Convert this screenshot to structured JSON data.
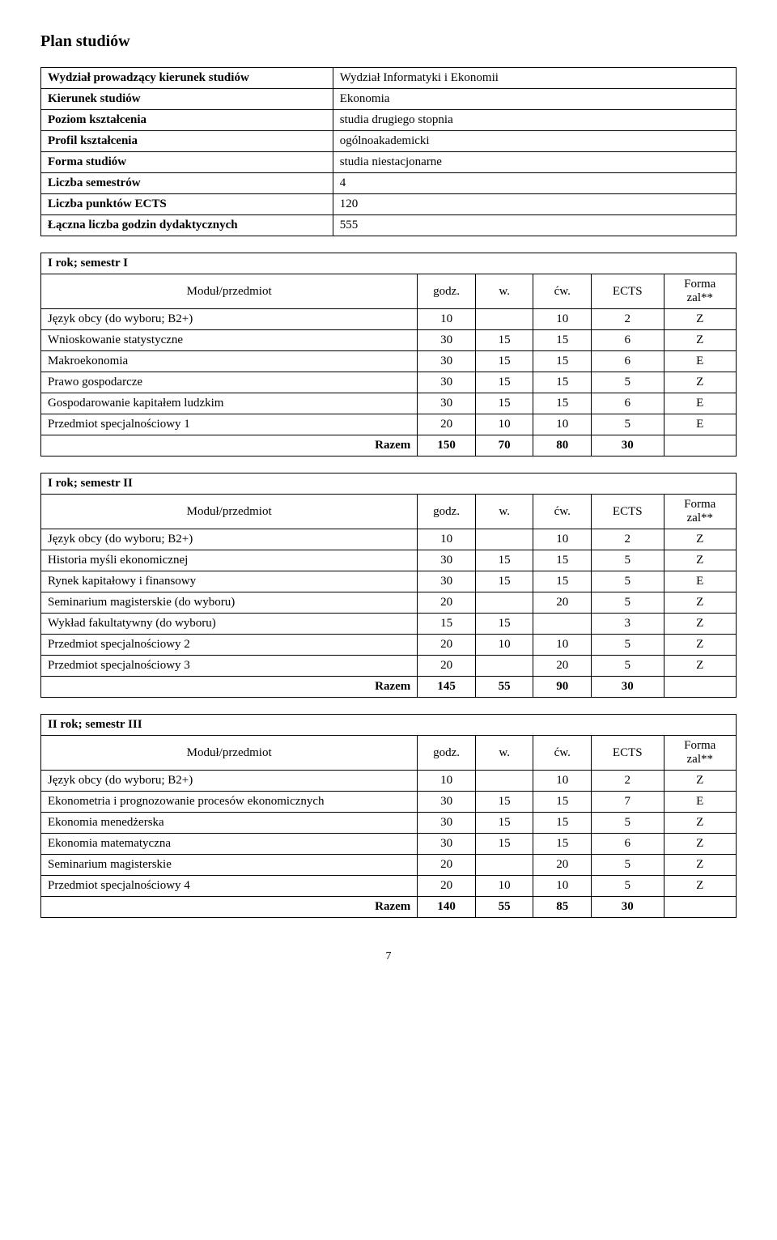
{
  "title": "Plan studiów",
  "info": {
    "rows": [
      {
        "label": "Wydział prowadzący kierunek studiów",
        "value": "Wydział Informatyki i Ekonomii"
      },
      {
        "label": "Kierunek studiów",
        "value": "Ekonomia"
      },
      {
        "label": "Poziom kształcenia",
        "value": "studia drugiego stopnia"
      },
      {
        "label": "Profil kształcenia",
        "value": "ogólnoakademicki"
      },
      {
        "label": "Forma studiów",
        "value": "studia niestacjonarne"
      },
      {
        "label": "Liczba semestrów",
        "value": "4"
      },
      {
        "label": "Liczba punktów ECTS",
        "value": "120"
      },
      {
        "label": "Łączna liczba godzin dydaktycznych",
        "value": "555"
      }
    ]
  },
  "headers": {
    "module": "Moduł/przedmiot",
    "godz": "godz.",
    "w": "w.",
    "cw": "ćw.",
    "ects": "ECTS",
    "forma": "Forma zal**",
    "razem": "Razem"
  },
  "sem1": {
    "title": "I rok; semestr I",
    "rows": [
      {
        "name": "Język obcy (do wyboru; B2+)",
        "godz": "10",
        "w": "",
        "cw": "10",
        "ects": "2",
        "forma": "Z"
      },
      {
        "name": "Wnioskowanie statystyczne",
        "godz": "30",
        "w": "15",
        "cw": "15",
        "ects": "6",
        "forma": "Z"
      },
      {
        "name": "Makroekonomia",
        "godz": "30",
        "w": "15",
        "cw": "15",
        "ects": "6",
        "forma": "E"
      },
      {
        "name": "Prawo gospodarcze",
        "godz": "30",
        "w": "15",
        "cw": "15",
        "ects": "5",
        "forma": "Z"
      },
      {
        "name": "Gospodarowanie kapitałem ludzkim",
        "godz": "30",
        "w": "15",
        "cw": "15",
        "ects": "6",
        "forma": "E"
      },
      {
        "name": "Przedmiot specjalnościowy 1",
        "godz": "20",
        "w": "10",
        "cw": "10",
        "ects": "5",
        "forma": "E"
      }
    ],
    "sum": {
      "godz": "150",
      "w": "70",
      "cw": "80",
      "ects": "30"
    }
  },
  "sem2": {
    "title": "I rok; semestr II",
    "rows": [
      {
        "name": "Język obcy (do wyboru; B2+)",
        "godz": "10",
        "w": "",
        "cw": "10",
        "ects": "2",
        "forma": "Z"
      },
      {
        "name": "Historia myśli ekonomicznej",
        "godz": "30",
        "w": "15",
        "cw": "15",
        "ects": "5",
        "forma": "Z"
      },
      {
        "name": "Rynek kapitałowy i finansowy",
        "godz": "30",
        "w": "15",
        "cw": "15",
        "ects": "5",
        "forma": "E"
      },
      {
        "name": "Seminarium magisterskie (do wyboru)",
        "godz": "20",
        "w": "",
        "cw": "20",
        "ects": "5",
        "forma": "Z"
      },
      {
        "name": "Wykład fakultatywny (do wyboru)",
        "godz": "15",
        "w": "15",
        "cw": "",
        "ects": "3",
        "forma": "Z"
      },
      {
        "name": "Przedmiot specjalnościowy 2",
        "godz": "20",
        "w": "10",
        "cw": "10",
        "ects": "5",
        "forma": "Z"
      },
      {
        "name": "Przedmiot specjalnościowy 3",
        "godz": "20",
        "w": "",
        "cw": "20",
        "ects": "5",
        "forma": "Z"
      }
    ],
    "sum": {
      "godz": "145",
      "w": "55",
      "cw": "90",
      "ects": "30"
    }
  },
  "sem3": {
    "title": "II rok; semestr III",
    "rows": [
      {
        "name": "Język obcy (do wyboru; B2+)",
        "godz": "10",
        "w": "",
        "cw": "10",
        "ects": "2",
        "forma": "Z"
      },
      {
        "name": "Ekonometria i prognozowanie procesów ekonomicznych",
        "godz": "30",
        "w": "15",
        "cw": "15",
        "ects": "7",
        "forma": "E"
      },
      {
        "name": "Ekonomia menedżerska",
        "godz": "30",
        "w": "15",
        "cw": "15",
        "ects": "5",
        "forma": "Z"
      },
      {
        "name": "Ekonomia matematyczna",
        "godz": "30",
        "w": "15",
        "cw": "15",
        "ects": "6",
        "forma": "Z"
      },
      {
        "name": "Seminarium magisterskie",
        "godz": "20",
        "w": "",
        "cw": "20",
        "ects": "5",
        "forma": "Z"
      },
      {
        "name": "Przedmiot specjalnościowy 4",
        "godz": "20",
        "w": "10",
        "cw": "10",
        "ects": "5",
        "forma": "Z"
      }
    ],
    "sum": {
      "godz": "140",
      "w": "55",
      "cw": "85",
      "ects": "30"
    }
  },
  "page_number": "7"
}
